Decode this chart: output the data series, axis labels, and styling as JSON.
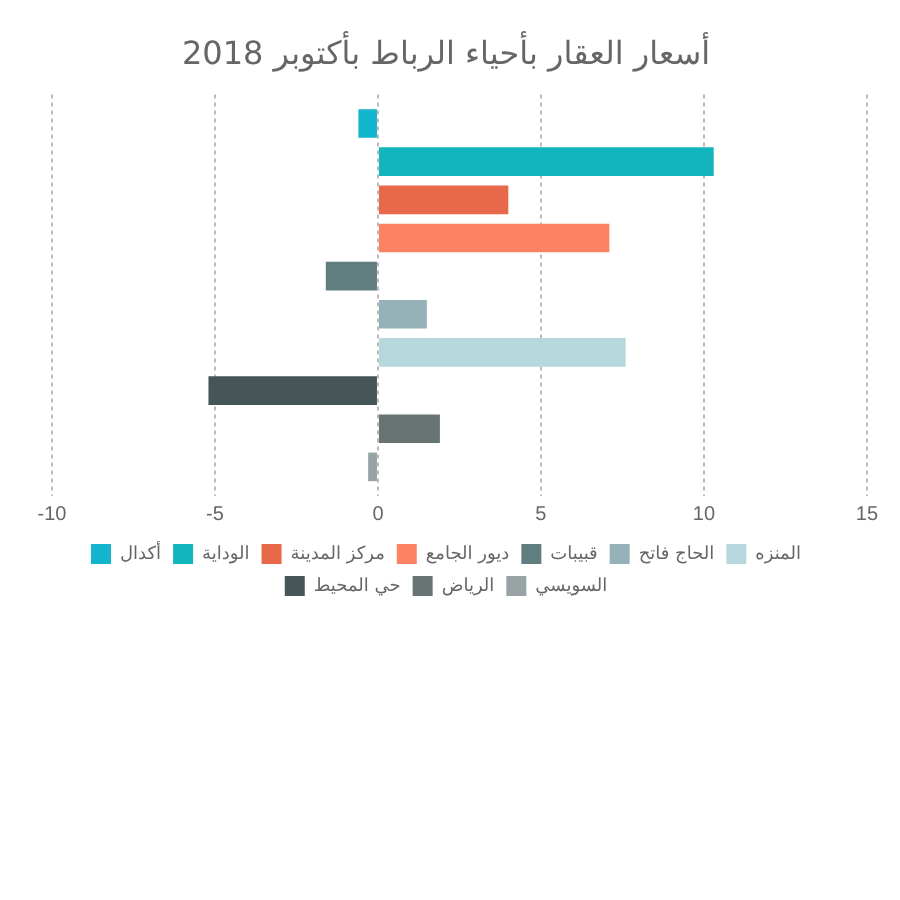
{
  "chart_data": {
    "type": "bar",
    "orientation": "horizontal",
    "title": "أسعار العقار بأحياء الرباط بأكتوبر 2018",
    "categories": [
      null
    ],
    "series": [
      {
        "name": "أكدال",
        "color": "#12b5cb",
        "values": [
          -0.6
        ]
      },
      {
        "name": "الوداية",
        "color": "#11b5bb",
        "values": [
          10.3
        ]
      },
      {
        "name": "مركز المدينة",
        "color": "#e8694a",
        "values": [
          4.0
        ]
      },
      {
        "name": "ديور الجامع",
        "color": "#fc8264",
        "values": [
          7.1
        ]
      },
      {
        "name": "قبيبات",
        "color": "#607d80",
        "values": [
          -1.6
        ]
      },
      {
        "name": "الحاج فاتح",
        "color": "#94b2b8",
        "values": [
          1.5
        ]
      },
      {
        "name": "المنزه",
        "color": "#b6d7dc",
        "values": [
          7.6
        ]
      },
      {
        "name": "حي المحيط",
        "color": "#465558",
        "values": [
          -5.2
        ]
      },
      {
        "name": "الرياض",
        "color": "#687373",
        "values": [
          1.9
        ]
      },
      {
        "name": "السويسي",
        "color": "#98a3a6",
        "values": [
          -0.3
        ]
      }
    ],
    "xlim": [
      -10,
      15
    ],
    "xticks": [
      -10,
      -5,
      0,
      5,
      10,
      15
    ],
    "grid": "x",
    "legend": "bottom"
  }
}
